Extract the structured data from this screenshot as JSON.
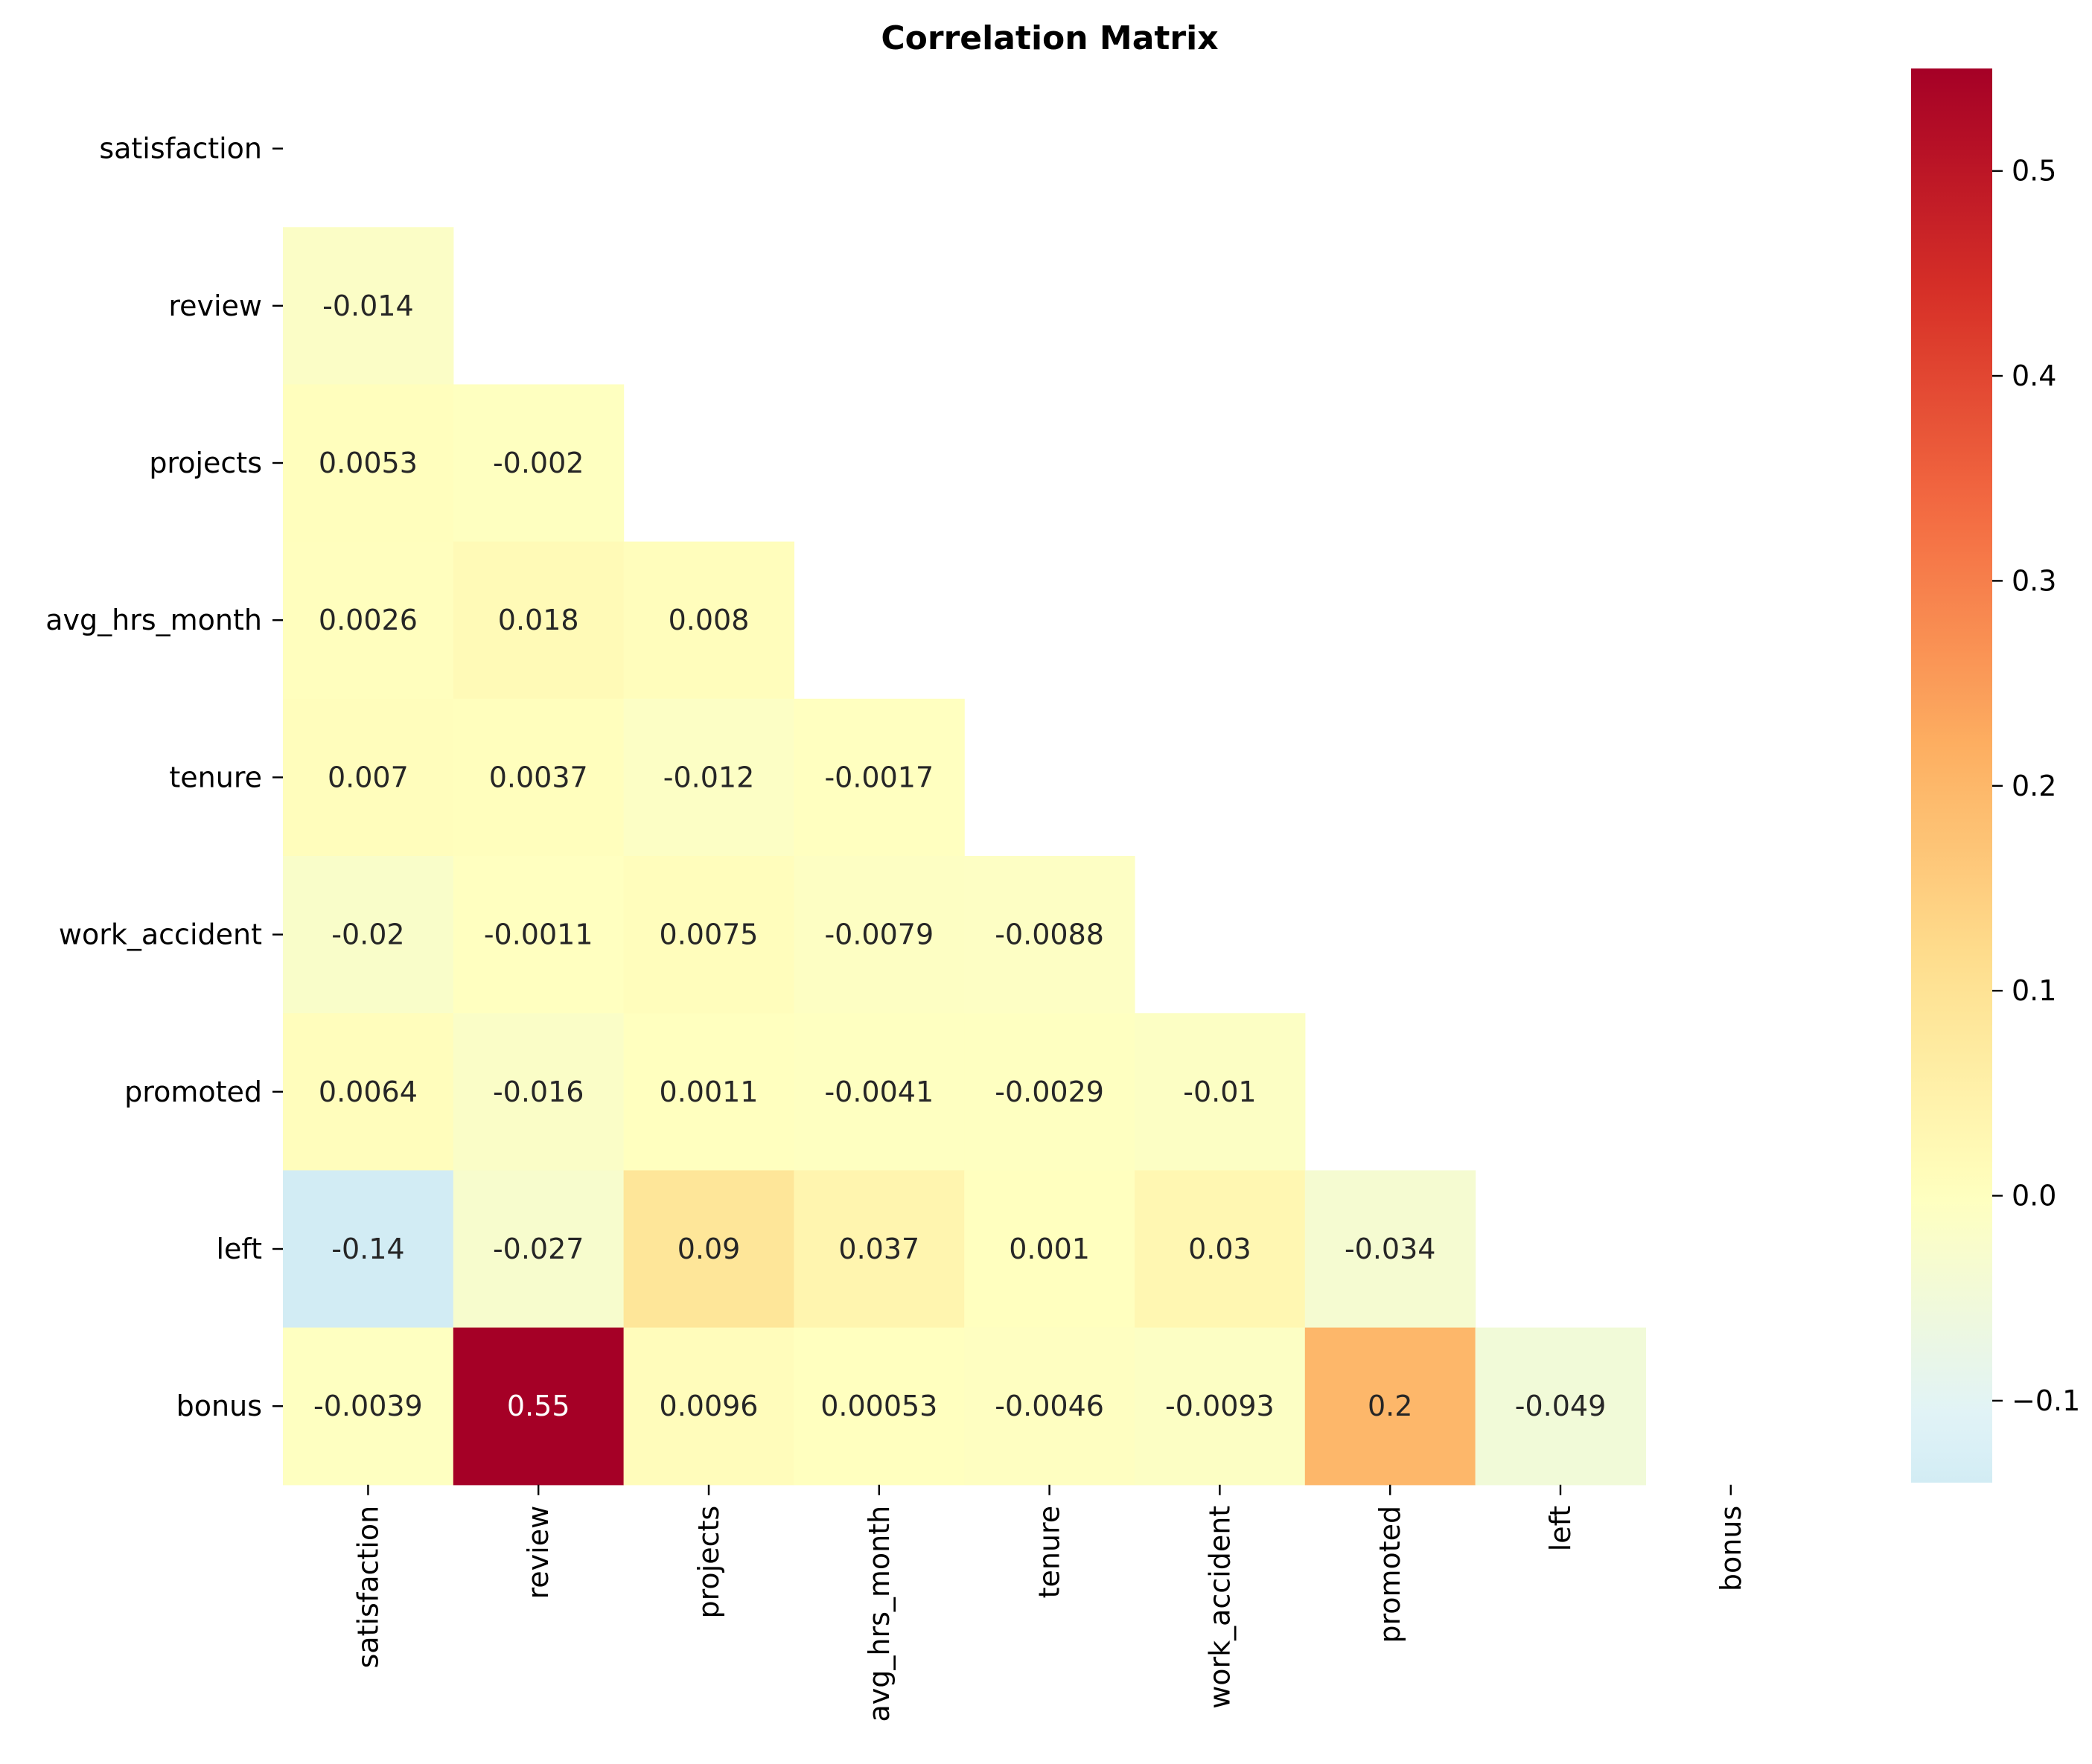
{
  "chart_data": {
    "type": "heatmap",
    "title": "Correlation Matrix",
    "xlabel": "",
    "ylabel": "",
    "variables": [
      "satisfaction",
      "review",
      "projects",
      "avg_hrs_month",
      "tenure",
      "work_accident",
      "promoted",
      "left",
      "bonus"
    ],
    "mask": "upper-triangle-including-diagonal",
    "cells": [
      {
        "row": "review",
        "col": "satisfaction",
        "value": -0.014,
        "label": "-0.014"
      },
      {
        "row": "projects",
        "col": "satisfaction",
        "value": 0.0053,
        "label": "0.0053"
      },
      {
        "row": "projects",
        "col": "review",
        "value": -0.002,
        "label": "-0.002"
      },
      {
        "row": "avg_hrs_month",
        "col": "satisfaction",
        "value": 0.0026,
        "label": "0.0026"
      },
      {
        "row": "avg_hrs_month",
        "col": "review",
        "value": 0.018,
        "label": "0.018"
      },
      {
        "row": "avg_hrs_month",
        "col": "projects",
        "value": 0.008,
        "label": "0.008"
      },
      {
        "row": "tenure",
        "col": "satisfaction",
        "value": 0.007,
        "label": "0.007"
      },
      {
        "row": "tenure",
        "col": "review",
        "value": 0.0037,
        "label": "0.0037"
      },
      {
        "row": "tenure",
        "col": "projects",
        "value": -0.012,
        "label": "-0.012"
      },
      {
        "row": "tenure",
        "col": "avg_hrs_month",
        "value": -0.0017,
        "label": "-0.0017"
      },
      {
        "row": "work_accident",
        "col": "satisfaction",
        "value": -0.02,
        "label": "-0.02"
      },
      {
        "row": "work_accident",
        "col": "review",
        "value": -0.0011,
        "label": "-0.0011"
      },
      {
        "row": "work_accident",
        "col": "projects",
        "value": 0.0075,
        "label": "0.0075"
      },
      {
        "row": "work_accident",
        "col": "avg_hrs_month",
        "value": -0.0079,
        "label": "-0.0079"
      },
      {
        "row": "work_accident",
        "col": "tenure",
        "value": -0.0088,
        "label": "-0.0088"
      },
      {
        "row": "promoted",
        "col": "satisfaction",
        "value": 0.0064,
        "label": "0.0064"
      },
      {
        "row": "promoted",
        "col": "review",
        "value": -0.016,
        "label": "-0.016"
      },
      {
        "row": "promoted",
        "col": "projects",
        "value": 0.0011,
        "label": "0.0011"
      },
      {
        "row": "promoted",
        "col": "avg_hrs_month",
        "value": -0.0041,
        "label": "-0.0041"
      },
      {
        "row": "promoted",
        "col": "tenure",
        "value": -0.0029,
        "label": "-0.0029"
      },
      {
        "row": "promoted",
        "col": "work_accident",
        "value": -0.01,
        "label": "-0.01"
      },
      {
        "row": "left",
        "col": "satisfaction",
        "value": -0.14,
        "label": "-0.14"
      },
      {
        "row": "left",
        "col": "review",
        "value": -0.027,
        "label": "-0.027"
      },
      {
        "row": "left",
        "col": "projects",
        "value": 0.09,
        "label": "0.09"
      },
      {
        "row": "left",
        "col": "avg_hrs_month",
        "value": 0.037,
        "label": "0.037"
      },
      {
        "row": "left",
        "col": "tenure",
        "value": 0.001,
        "label": "0.001"
      },
      {
        "row": "left",
        "col": "work_accident",
        "value": 0.03,
        "label": "0.03"
      },
      {
        "row": "left",
        "col": "promoted",
        "value": -0.034,
        "label": "-0.034"
      },
      {
        "row": "bonus",
        "col": "satisfaction",
        "value": -0.0039,
        "label": "-0.0039"
      },
      {
        "row": "bonus",
        "col": "review",
        "value": 0.55,
        "label": "0.55"
      },
      {
        "row": "bonus",
        "col": "projects",
        "value": 0.0096,
        "label": "0.0096"
      },
      {
        "row": "bonus",
        "col": "avg_hrs_month",
        "value": 0.00053,
        "label": "0.00053"
      },
      {
        "row": "bonus",
        "col": "tenure",
        "value": -0.0046,
        "label": "-0.0046"
      },
      {
        "row": "bonus",
        "col": "work_accident",
        "value": -0.0093,
        "label": "-0.0093"
      },
      {
        "row": "bonus",
        "col": "promoted",
        "value": 0.2,
        "label": "0.2"
      },
      {
        "row": "bonus",
        "col": "left",
        "value": -0.049,
        "label": "-0.049"
      }
    ],
    "colormap": "RdYlBu_r",
    "color_center": 0.0,
    "color_range": [
      -0.14,
      0.55
    ],
    "colorbar": {
      "ticks": [
        -0.1,
        0.0,
        0.1,
        0.2,
        0.3,
        0.4,
        0.5
      ],
      "tick_labels": [
        "−0.1",
        "0.0",
        "0.1",
        "0.2",
        "0.3",
        "0.4",
        "0.5"
      ],
      "placement": "right"
    },
    "grid": false
  }
}
